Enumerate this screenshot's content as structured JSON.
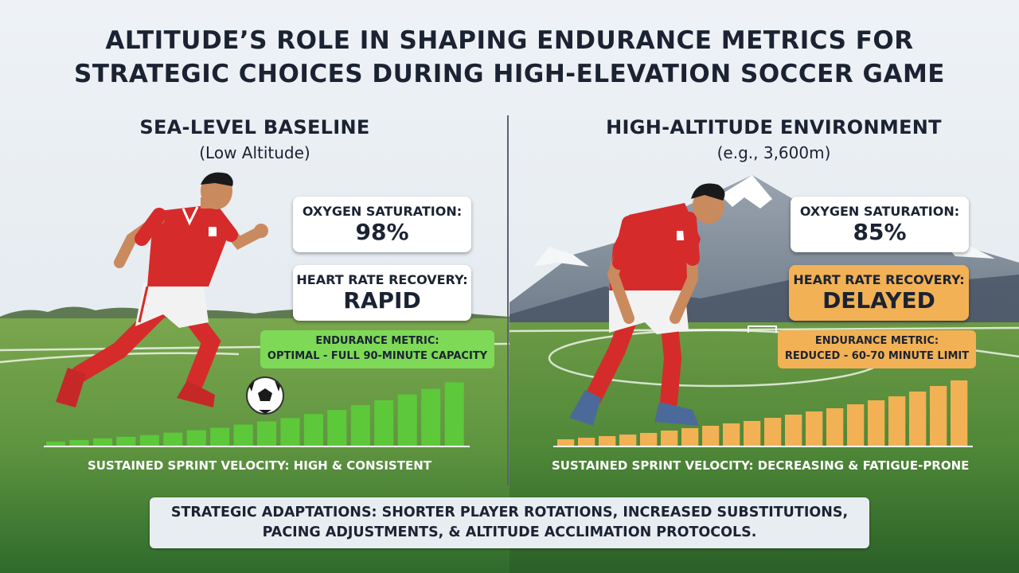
{
  "title": {
    "line1": "ALTITUDE’S ROLE IN SHAPING ENDURANCE METRICS FOR",
    "line2": "STRATEGIC CHOICES DURING HIGH-ELEVATION SOCCER GAME"
  },
  "left_panel": {
    "heading": "SEA-LEVEL BASELINE",
    "subheading": "(Low Altitude)",
    "oxygen_label": "OXYGEN SATURATION:",
    "oxygen_value": "98%",
    "hr_label": "HEART RATE RECOVERY:",
    "hr_value": "RAPID",
    "endurance_label": "ENDURANCE METRIC:",
    "endurance_value": "OPTIMAL - FULL 90-MINUTE CAPACITY",
    "caption": "SUSTAINED SPRINT VELOCITY: HIGH & CONSISTENT",
    "bar_color": "#5cc83a",
    "bars": [
      0.05,
      0.07,
      0.09,
      0.11,
      0.13,
      0.16,
      0.19,
      0.22,
      0.26,
      0.3,
      0.34,
      0.39,
      0.44,
      0.5,
      0.56,
      0.63,
      0.7,
      0.78
    ]
  },
  "right_panel": {
    "heading": "HIGH-ALTITUDE ENVIRONMENT",
    "subheading": "(e.g., 3,600m)",
    "oxygen_label": "OXYGEN SATURATION:",
    "oxygen_value": "85%",
    "hr_label": "HEART RATE RECOVERY:",
    "hr_value": "DELAYED",
    "endurance_label": "ENDURANCE METRIC:",
    "endurance_value": "REDUCED - 60-70 MINUTE LIMIT",
    "caption": "SUSTAINED SPRINT VELOCITY: DECREASING & FATIGUE-PRONE",
    "bar_color": "#f2b154",
    "bars": [
      0.08,
      0.1,
      0.12,
      0.14,
      0.16,
      0.19,
      0.22,
      0.25,
      0.28,
      0.31,
      0.35,
      0.39,
      0.43,
      0.47,
      0.52,
      0.57,
      0.62,
      0.68,
      0.75,
      0.82
    ]
  },
  "footer": {
    "line1": "STRATEGIC ADAPTATIONS: SHORTER PLAYER ROTATIONS, INCREASED SUBSTITUTIONS,",
    "line2": "PACING ADJUSTMENTS, & ALTITUDE ACCLIMATION PROTOCOLS."
  }
}
